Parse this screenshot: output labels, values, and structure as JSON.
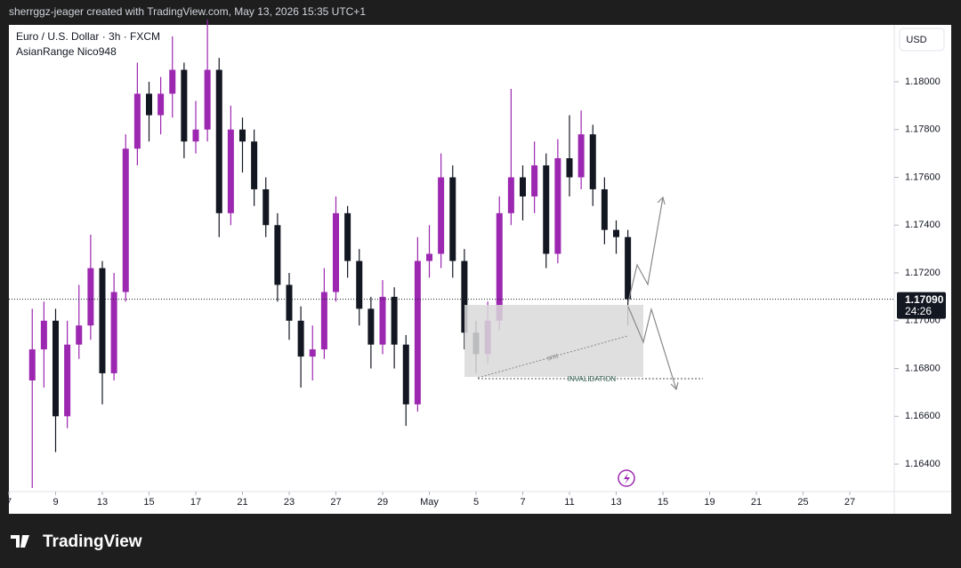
{
  "header": {
    "caption": "sherrggz-jeager created with TradingView.com, May 13, 2026 15:35 UTC+1",
    "brand": "TradingView"
  },
  "chart_data": {
    "type": "candlestick",
    "title": "Euro / U.S. Dollar · 3h · FXCM",
    "subtitle": "AsianRange Nico948",
    "currency": "USD",
    "up_color": "#9c27b0",
    "down_color": "#131722",
    "grid": false,
    "ylim": [
      1.16285,
      1.18238
    ],
    "yticks": [
      {
        "value": 1.164,
        "label": "1.16400"
      },
      {
        "value": 1.166,
        "label": "1.16600"
      },
      {
        "value": 1.168,
        "label": "1.16800"
      },
      {
        "value": 1.17,
        "label": "1.17000"
      },
      {
        "value": 1.172,
        "label": "1.17200"
      },
      {
        "value": 1.174,
        "label": "1.17400"
      },
      {
        "value": 1.176,
        "label": "1.17600"
      },
      {
        "value": 1.178,
        "label": "1.17800"
      },
      {
        "value": 1.18,
        "label": "1.18000"
      }
    ],
    "xticks": [
      {
        "value": 0,
        "label": "7"
      },
      {
        "value": 4,
        "label": "9"
      },
      {
        "value": 8,
        "label": "13"
      },
      {
        "value": 12,
        "label": "15"
      },
      {
        "value": 16,
        "label": "17"
      },
      {
        "value": 20,
        "label": "21"
      },
      {
        "value": 24,
        "label": "23"
      },
      {
        "value": 28,
        "label": "27"
      },
      {
        "value": 32,
        "label": "29"
      },
      {
        "value": 36,
        "label": "May"
      },
      {
        "value": 40,
        "label": "5"
      },
      {
        "value": 44,
        "label": "7"
      },
      {
        "value": 48,
        "label": "11"
      },
      {
        "value": 52,
        "label": "13"
      },
      {
        "value": 56,
        "label": "15"
      },
      {
        "value": 60,
        "label": "19"
      },
      {
        "value": 64,
        "label": "21"
      },
      {
        "value": 68,
        "label": "25"
      },
      {
        "value": 72,
        "label": "27"
      }
    ],
    "x": [
      2,
      3,
      4,
      5,
      6,
      7,
      8,
      9,
      10,
      11,
      12,
      13,
      14,
      15,
      16,
      17,
      18,
      19,
      20,
      21,
      22,
      23,
      24,
      25,
      26,
      27,
      28,
      29,
      30,
      31,
      32,
      33,
      34,
      35,
      36,
      37,
      38,
      39,
      40,
      41,
      42,
      43,
      44,
      45,
      46,
      47,
      48,
      49,
      50,
      51,
      52,
      53
    ],
    "open": [
      1.1675,
      1.1688,
      1.17,
      1.166,
      1.169,
      1.1698,
      1.1722,
      1.1678,
      1.1712,
      1.1772,
      1.1795,
      1.1786,
      1.1795,
      1.1805,
      1.1775,
      1.178,
      1.1805,
      1.1745,
      1.178,
      1.1775,
      1.1755,
      1.174,
      1.1715,
      1.17,
      1.1685,
      1.1688,
      1.1712,
      1.1745,
      1.1725,
      1.1705,
      1.169,
      1.171,
      1.169,
      1.1665,
      1.1725,
      1.1728,
      1.176,
      1.1725,
      1.1695,
      1.1686,
      1.17,
      1.1745,
      1.176,
      1.1752,
      1.1765,
      1.1728,
      1.1768,
      1.176,
      1.1778,
      1.1755,
      1.1738,
      1.1735
    ],
    "high": [
      1.1705,
      1.1708,
      1.1705,
      1.17,
      1.1715,
      1.1736,
      1.1725,
      1.172,
      1.1778,
      1.1808,
      1.18,
      1.1802,
      1.1819,
      1.1808,
      1.1792,
      1.1826,
      1.181,
      1.179,
      1.1785,
      1.178,
      1.176,
      1.1745,
      1.172,
      1.1706,
      1.1698,
      1.1722,
      1.1752,
      1.1748,
      1.173,
      1.171,
      1.1717,
      1.1714,
      1.1694,
      1.1735,
      1.174,
      1.177,
      1.1765,
      1.173,
      1.17,
      1.1708,
      1.1752,
      1.1797,
      1.1765,
      1.1775,
      1.177,
      1.1776,
      1.1786,
      1.1788,
      1.1782,
      1.176,
      1.1742,
      1.1738
    ],
    "low": [
      1.163,
      1.1672,
      1.1645,
      1.1655,
      1.1684,
      1.1692,
      1.1665,
      1.1675,
      1.1708,
      1.1765,
      1.1775,
      1.1778,
      1.1785,
      1.1768,
      1.177,
      1.1775,
      1.1735,
      1.174,
      1.1762,
      1.1748,
      1.1735,
      1.1708,
      1.1692,
      1.1672,
      1.1675,
      1.1684,
      1.1708,
      1.1718,
      1.1698,
      1.168,
      1.1686,
      1.168,
      1.1656,
      1.1662,
      1.1718,
      1.1722,
      1.1718,
      1.1688,
      1.1678,
      1.1682,
      1.1696,
      1.174,
      1.1742,
      1.1745,
      1.1722,
      1.1724,
      1.1752,
      1.1755,
      1.1748,
      1.1732,
      1.1728,
      1.1698
    ],
    "close": [
      1.1688,
      1.17,
      1.166,
      1.169,
      1.1698,
      1.1722,
      1.1678,
      1.1712,
      1.1772,
      1.1795,
      1.1786,
      1.1795,
      1.1805,
      1.1775,
      1.178,
      1.1805,
      1.1745,
      1.178,
      1.1775,
      1.1755,
      1.174,
      1.1715,
      1.17,
      1.1685,
      1.1688,
      1.1712,
      1.1745,
      1.1725,
      1.1705,
      1.169,
      1.171,
      1.169,
      1.1665,
      1.1725,
      1.1728,
      1.176,
      1.1725,
      1.1695,
      1.1686,
      1.17,
      1.1745,
      1.176,
      1.1752,
      1.1765,
      1.1728,
      1.1768,
      1.176,
      1.1778,
      1.1755,
      1.1738,
      1.1735,
      1.1709
    ],
    "last_price": {
      "value": 1.1709,
      "label": "1.17090"
    },
    "countdown": "24:26",
    "annotations": {
      "smt": "smt",
      "invalidation": "INVALIDATION"
    }
  }
}
